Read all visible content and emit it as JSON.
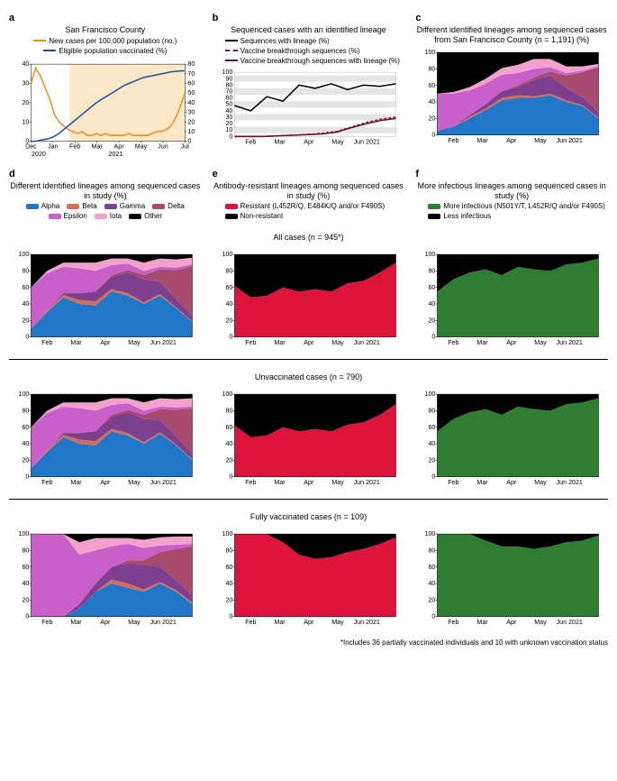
{
  "months": [
    "Feb",
    "Mar",
    "Apr",
    "May",
    "Jun 2021"
  ],
  "x_positions": [
    10,
    28,
    46,
    64,
    82
  ],
  "colors": {
    "alpha": "#2176c7",
    "beta": "#d0705a",
    "gamma": "#7e3f8f",
    "delta": "#a84a6e",
    "epsilon": "#c960c9",
    "iota": "#f2a1cc",
    "other": "#000000",
    "resistant": "#dc143c",
    "nonresistant": "#000000",
    "infectious": "#2e7d32",
    "lessinfectious": "#000000",
    "newcases": "#f28c1e",
    "vaccinated": "#1f4fa8",
    "shaded": "#fce8c7",
    "grid": "#e5e5e5",
    "seq_lineage": "#000000",
    "vbt": "#8b1a3a",
    "vbt_lineage": "#6b0f2b"
  },
  "panel_a": {
    "label": "a",
    "title": "San Francisco County",
    "legend": [
      {
        "color": "#f28c1e",
        "label": "New cases per 100,000 population (no.)"
      },
      {
        "color": "#1f4fa8",
        "label": "Eligible population vaccinated (%)"
      }
    ],
    "y_left_max": 40,
    "y_left_ticks": [
      0,
      10,
      20,
      30,
      40
    ],
    "y_right_max": 80,
    "y_right_ticks": [
      0,
      10,
      20,
      30,
      40,
      50,
      60,
      70,
      80
    ],
    "x_labels": [
      "Dec",
      "Jan",
      "Feb",
      "Mar",
      "Apr",
      "May",
      "Jun",
      "Jul"
    ],
    "x_labels2": [
      "2020",
      "2021"
    ],
    "shaded_start": 2,
    "shaded_end": 8,
    "newcases": [
      30,
      38,
      34,
      28,
      22,
      14,
      10,
      8,
      6,
      5,
      4,
      5,
      3,
      3,
      4,
      3,
      4,
      3,
      3,
      3,
      3,
      4,
      3,
      3,
      3,
      3,
      4,
      5,
      5,
      6,
      8,
      12,
      18,
      25
    ],
    "vaccinated": [
      0,
      0,
      1,
      2,
      3,
      5,
      8,
      12,
      16,
      20,
      24,
      28,
      32,
      36,
      40,
      43,
      46,
      49,
      52,
      55,
      58,
      60,
      62,
      64,
      66,
      67,
      68,
      69,
      70,
      71,
      72,
      72.5,
      73,
      73
    ]
  },
  "panel_b": {
    "label": "b",
    "title": "Sequenced cases with an identified lineage",
    "legend": [
      {
        "color": "#000000",
        "style": "solid",
        "label": "Sequences with lineage (%)"
      },
      {
        "color": "#8b1a3a",
        "style": "dashed",
        "label": "Vaccine breakthrough sequences (%)"
      },
      {
        "color": "#6b0f2b",
        "style": "solid",
        "label": "Vaccine breakthrough sequences with lineage (%)"
      }
    ],
    "y_ticks": [
      0,
      10,
      20,
      30,
      40,
      50,
      60,
      70,
      80,
      90,
      100
    ],
    "seq_lineage": [
      48,
      40,
      62,
      55,
      80,
      75,
      82,
      73,
      80,
      78,
      82
    ],
    "vbt": [
      0,
      0,
      0,
      1,
      2,
      3,
      5,
      8,
      15,
      22,
      27,
      30
    ],
    "vbt_lineage": [
      0,
      0,
      0,
      1,
      2,
      3,
      4,
      7,
      14,
      20,
      25,
      28
    ]
  },
  "panel_c": {
    "label": "c",
    "title": "Different identified lineages among sequenced cases from San Francisco County (n = 1,191) (%)"
  },
  "panel_d": {
    "label": "d",
    "title": "Different identified lineages among sequenced cases in study (%)",
    "legend": [
      {
        "color": "#2176c7",
        "label": "Alpha"
      },
      {
        "color": "#d0705a",
        "label": "Beta"
      },
      {
        "color": "#7e3f8f",
        "label": "Gamma"
      },
      {
        "color": "#a84a6e",
        "label": "Delta"
      },
      {
        "color": "#c960c9",
        "label": "Epsilon"
      },
      {
        "color": "#f2a1cc",
        "label": "Iota"
      },
      {
        "color": "#000000",
        "label": "Other"
      }
    ]
  },
  "panel_e": {
    "label": "e",
    "title": "Antibody-resistant lineages among sequenced cases in study (%)",
    "legend": [
      {
        "color": "#dc143c",
        "label": "Resistant (L452R/Q, E484K/Q and/or F490S)"
      },
      {
        "color": "#000000",
        "label": "Non-resistant"
      }
    ]
  },
  "panel_f": {
    "label": "f",
    "title": "More infectious lineages among sequenced cases in study (%)",
    "legend": [
      {
        "color": "#2e7d32",
        "label": "More infectious (N501Y/T, L452R/Q and/or F490S)"
      },
      {
        "color": "#000000",
        "label": "Less infectious"
      }
    ]
  },
  "sections": {
    "all": "All cases (n = 945*)",
    "unvacc": "Unvaccinated cases (n = 790)",
    "fully": "Fully vaccinated cases (n = 109)"
  },
  "lineage_data": {
    "sf_county": {
      "alpha": [
        5,
        10,
        20,
        30,
        42,
        45,
        45,
        48,
        40,
        35,
        20
      ],
      "beta": [
        0,
        0,
        2,
        2,
        3,
        3,
        2,
        2,
        2,
        1,
        1
      ],
      "gamma": [
        0,
        0,
        2,
        5,
        8,
        10,
        20,
        22,
        15,
        10,
        6
      ],
      "delta": [
        0,
        0,
        0,
        0,
        0,
        2,
        3,
        5,
        15,
        30,
        55
      ],
      "epsilon": [
        45,
        40,
        30,
        25,
        20,
        15,
        10,
        5,
        3,
        2,
        1
      ],
      "iota": [
        0,
        2,
        4,
        6,
        8,
        10,
        12,
        10,
        8,
        5,
        3
      ],
      "other": [
        50,
        48,
        42,
        32,
        19,
        15,
        8,
        8,
        17,
        17,
        14
      ]
    },
    "all": {
      "alpha": [
        10,
        30,
        48,
        40,
        38,
        55,
        50,
        40,
        50,
        35,
        18
      ],
      "beta": [
        0,
        2,
        3,
        5,
        5,
        3,
        3,
        2,
        2,
        1,
        1
      ],
      "gamma": [
        0,
        0,
        2,
        8,
        12,
        15,
        25,
        28,
        15,
        10,
        7
      ],
      "delta": [
        0,
        0,
        0,
        0,
        0,
        2,
        3,
        5,
        15,
        35,
        60
      ],
      "epsilon": [
        50,
        45,
        32,
        30,
        25,
        12,
        8,
        5,
        3,
        3,
        2
      ],
      "iota": [
        0,
        3,
        5,
        7,
        10,
        8,
        6,
        10,
        10,
        10,
        8
      ],
      "other": [
        40,
        20,
        10,
        10,
        10,
        5,
        5,
        10,
        5,
        6,
        4
      ]
    },
    "unvacc": {
      "alpha": [
        10,
        30,
        48,
        40,
        38,
        55,
        50,
        40,
        52,
        38,
        20
      ],
      "beta": [
        0,
        2,
        3,
        5,
        5,
        3,
        3,
        2,
        2,
        1,
        1
      ],
      "gamma": [
        0,
        0,
        2,
        8,
        12,
        15,
        25,
        28,
        15,
        10,
        7
      ],
      "delta": [
        0,
        0,
        0,
        0,
        0,
        2,
        3,
        5,
        13,
        32,
        55
      ],
      "epsilon": [
        50,
        45,
        32,
        30,
        25,
        12,
        8,
        5,
        3,
        3,
        2
      ],
      "iota": [
        0,
        3,
        5,
        7,
        10,
        8,
        6,
        10,
        10,
        10,
        10
      ],
      "other": [
        40,
        20,
        10,
        10,
        10,
        5,
        5,
        10,
        5,
        6,
        5
      ]
    },
    "fully": {
      "alpha": [
        0,
        0,
        0,
        10,
        30,
        40,
        35,
        30,
        40,
        30,
        15
      ],
      "beta": [
        0,
        0,
        0,
        0,
        0,
        5,
        5,
        3,
        2,
        2,
        2
      ],
      "gamma": [
        0,
        0,
        0,
        5,
        10,
        15,
        25,
        30,
        18,
        12,
        8
      ],
      "delta": [
        0,
        0,
        0,
        0,
        0,
        0,
        3,
        5,
        18,
        38,
        60
      ],
      "epsilon": [
        100,
        100,
        100,
        60,
        40,
        25,
        20,
        15,
        8,
        5,
        3
      ],
      "iota": [
        0,
        0,
        0,
        15,
        15,
        10,
        7,
        10,
        10,
        10,
        9
      ],
      "other": [
        0,
        0,
        0,
        10,
        5,
        5,
        5,
        7,
        4,
        3,
        3
      ]
    }
  },
  "resistant_data": {
    "all": [
      62,
      48,
      50,
      60,
      55,
      58,
      55,
      65,
      68,
      78,
      90
    ],
    "unvacc": [
      62,
      48,
      50,
      60,
      55,
      58,
      55,
      63,
      66,
      75,
      88
    ],
    "fully": [
      100,
      100,
      100,
      90,
      75,
      70,
      72,
      78,
      82,
      88,
      96
    ]
  },
  "infectious_data": {
    "all": [
      55,
      70,
      78,
      82,
      75,
      85,
      82,
      80,
      88,
      90,
      95
    ],
    "unvacc": [
      55,
      70,
      78,
      82,
      75,
      85,
      82,
      80,
      88,
      90,
      95
    ],
    "fully": [
      100,
      100,
      100,
      92,
      85,
      85,
      82,
      85,
      90,
      92,
      98
    ]
  },
  "footnote": "*Includes 36 partially vaccinated individuals and 10 with unknown vaccination status"
}
